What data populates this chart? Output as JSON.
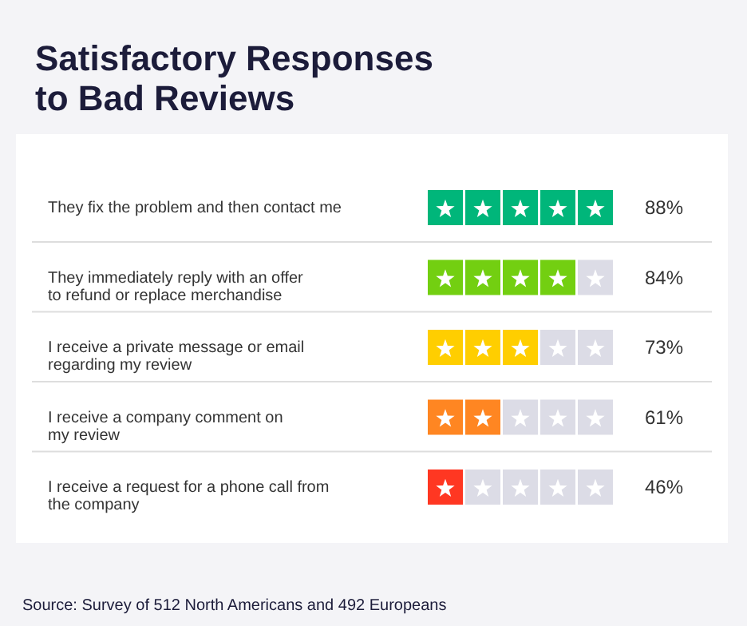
{
  "chart_data": {
    "type": "other",
    "title": "Satisfactory Responses\nto Bad Reviews",
    "categories": [
      "They fix the problem and then contact me",
      "They immediately reply with an offer\nto refund or replace merchandise",
      "I receive a private message or email\nregarding my review",
      "I receive a company comment on\nmy review",
      "I receive a request for a phone call from\nthe company"
    ],
    "values": [
      88,
      84,
      73,
      61,
      46
    ],
    "value_labels": [
      "88%",
      "84%",
      "73%",
      "61%",
      "46%"
    ],
    "colors": [
      "#00b67a",
      "#73cf11",
      "#ffce00",
      "#ff8622",
      "#ff3722"
    ],
    "annotations": [
      "Source: Survey of 512 North Americans and 492 Europeans"
    ]
  }
}
